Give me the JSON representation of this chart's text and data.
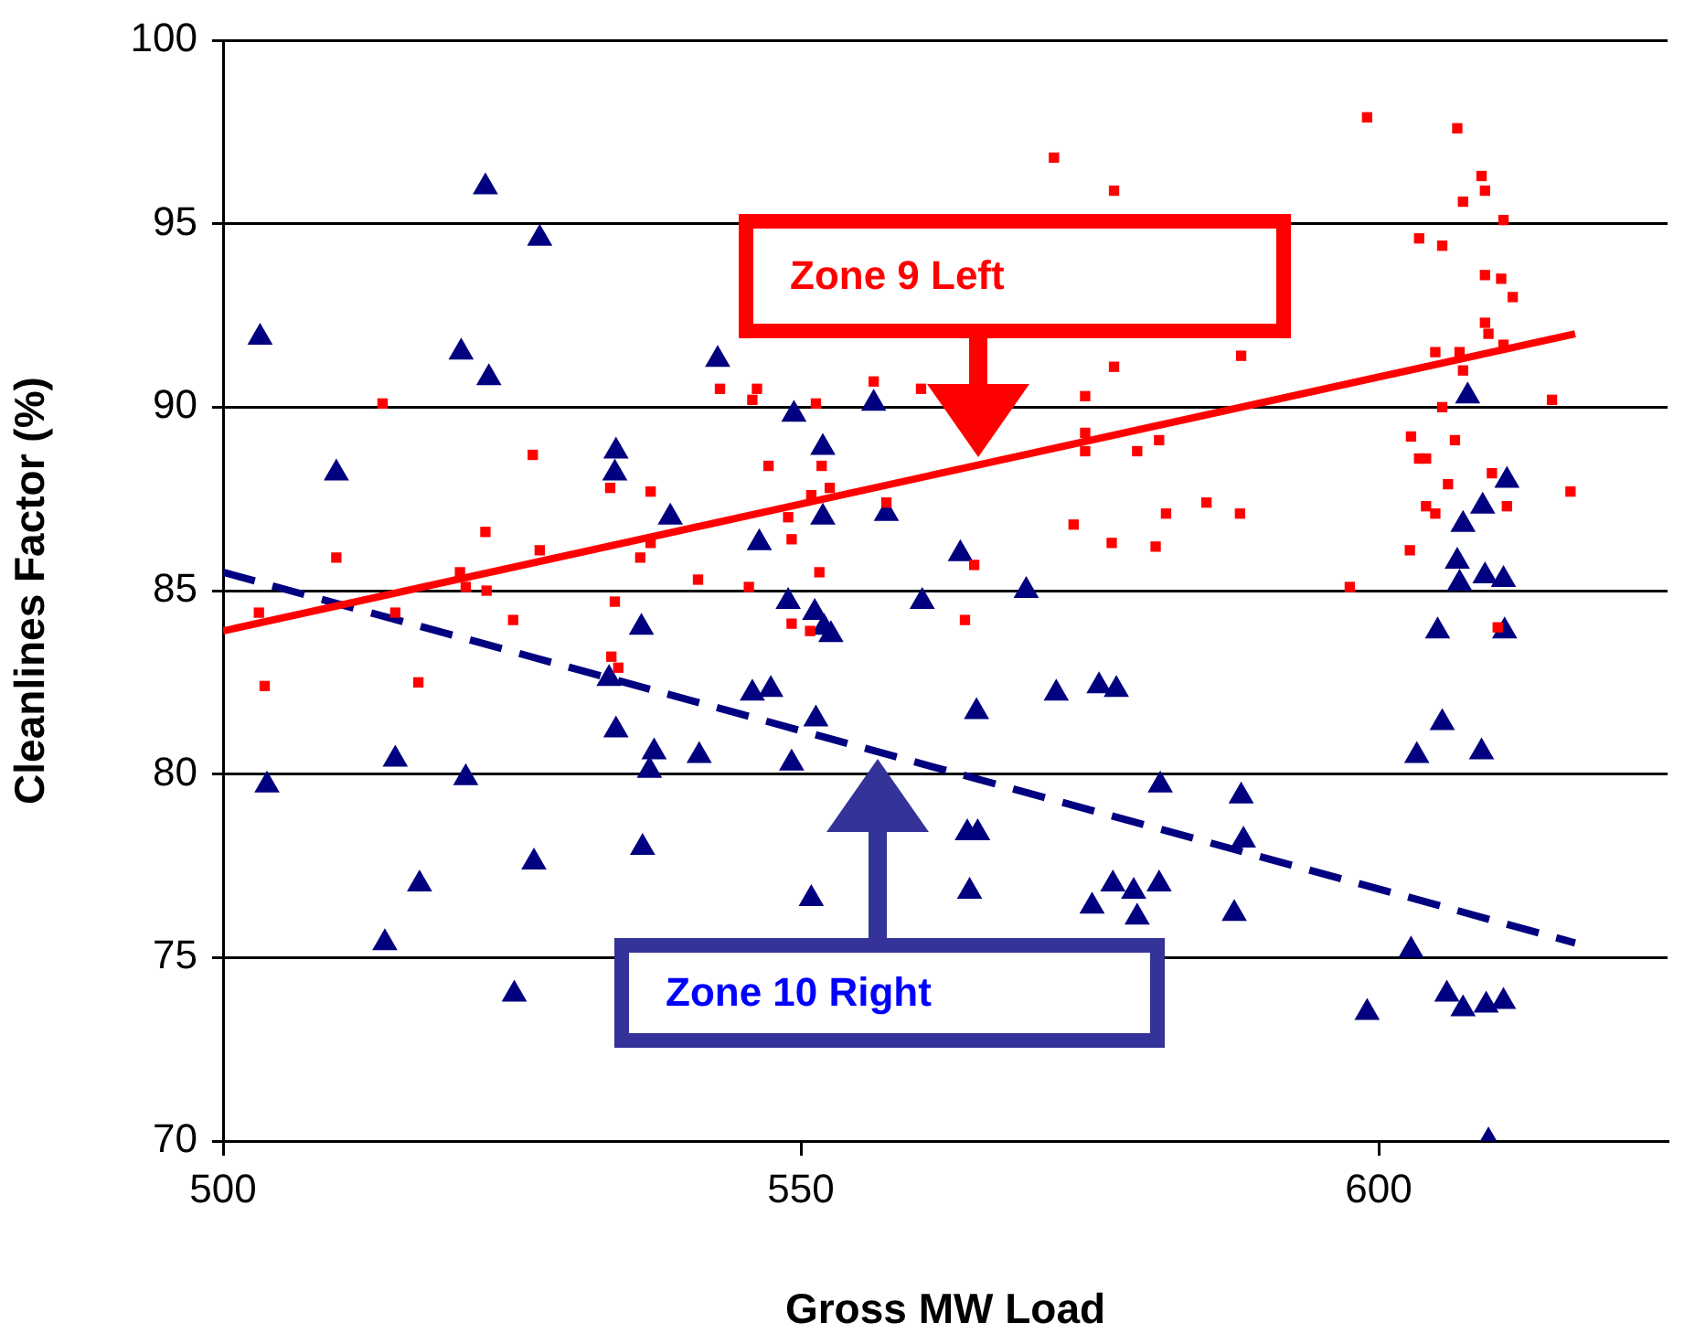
{
  "chart_data": {
    "type": "scatter",
    "xlabel": "Gross MW Load",
    "ylabel": "Cleanlines Factor (%)",
    "xlim": [
      500,
      625
    ],
    "xticks": [
      500,
      550,
      600
    ],
    "ylim": [
      70,
      100
    ],
    "yticks": [
      70,
      75,
      80,
      85,
      90,
      95,
      100
    ],
    "grid": "y",
    "series": [
      {
        "type": "scatter",
        "marker": "square",
        "color": "#ff0000",
        "x": [
          599,
          606.8,
          608.9,
          609.2,
          607.3,
          610.8,
          603.5,
          605.5,
          609.2,
          610.6,
          611.6,
          609.2,
          609.5,
          610.8,
          604.9,
          607,
          607.3,
          615,
          605.5,
          602.8,
          603.5,
          606.6,
          604.1,
          606,
          609.8,
          611.1,
          616.6,
          604.1,
          604.9,
          602.7,
          597.5,
          585.1,
          588,
          588.1,
          610.3,
          571.9,
          577.1,
          577.1,
          574.6,
          543,
          546.2,
          545.8,
          551.3,
          556.3,
          560.4,
          547.2,
          551.8,
          550.9,
          552.5,
          548.9,
          549.2,
          557.4,
          574.6,
          574.6,
          579.1,
          581,
          573.6,
          576.9,
          580.7,
          581.6,
          565,
          551.6,
          545.5,
          549.2,
          564.2,
          550.8,
          513.8,
          526.8,
          533.5,
          537,
          522.7,
          527.4,
          509.8,
          536.1,
          537,
          520.5,
          521,
          522.8,
          541.1,
          503.1,
          514.9,
          525.1,
          533.9,
          533.6,
          534.2,
          503.6,
          516.9
        ],
        "values": [
          97.9,
          97.6,
          96.3,
          95.9,
          95.6,
          95.1,
          94.6,
          94.4,
          93.6,
          93.5,
          93,
          92.3,
          92,
          91.7,
          91.5,
          91.5,
          91,
          90.2,
          90,
          89.2,
          88.6,
          89.1,
          88.6,
          87.9,
          88.2,
          87.3,
          87.7,
          87.3,
          87.1,
          86.1,
          85.1,
          87.4,
          87.1,
          91.4,
          84,
          96.8,
          95.9,
          91.1,
          90.3,
          90.5,
          90.5,
          90.2,
          90.1,
          90.7,
          90.5,
          88.4,
          88.4,
          87.6,
          87.8,
          87,
          86.4,
          87.4,
          89.3,
          88.8,
          88.8,
          89.1,
          86.8,
          86.3,
          86.2,
          87.1,
          85.7,
          85.5,
          85.1,
          84.1,
          84.2,
          83.9,
          90.1,
          88.7,
          87.8,
          87.7,
          86.6,
          86.1,
          85.9,
          85.9,
          86.3,
          85.5,
          85.1,
          85,
          85.3,
          84.4,
          84.4,
          84.2,
          84.7,
          83.2,
          82.9,
          82.4,
          82.5
        ]
      },
      {
        "type": "scatter",
        "marker": "triangle",
        "color": "#000080",
        "x": [
          522.7,
          527.4,
          503.2,
          520.6,
          523,
          542.8,
          509.8,
          534,
          533.9,
          538.7,
          536.2,
          533.4,
          534,
          537.3,
          536.9,
          541.2,
          514.9,
          521,
          503.8,
          536.3,
          526.9,
          517,
          514,
          525.2,
          549.4,
          551.9,
          556.3,
          551.9,
          557.4,
          546.4,
          563.8,
          548.9,
          551.2,
          552,
          552.6,
          560.5,
          569.5,
          545.8,
          547.4,
          551.3,
          565.2,
          572.1,
          575.8,
          577.3,
          549.2,
          581.1,
          564.4,
          565.3,
          564.6,
          550.9,
          575.2,
          577,
          578.8,
          581,
          579.1,
          607.7,
          611.1,
          609,
          607.3,
          606.8,
          609.2,
          610.8,
          607,
          605.1,
          610.9,
          605.5,
          603.3,
          608.9,
          588.1,
          588.3,
          587.5,
          602.8,
          599,
          605.9,
          607.3,
          609.3,
          610.8,
          609.5
        ],
        "values": [
          96,
          94.6,
          91.9,
          91.5,
          90.8,
          91.3,
          88.2,
          88.8,
          88.2,
          87,
          84,
          82.6,
          81.2,
          80.6,
          80.1,
          80.5,
          80.4,
          79.9,
          79.7,
          78,
          77.6,
          77,
          75.4,
          74,
          89.8,
          88.9,
          90.1,
          87,
          87.1,
          86.3,
          86,
          84.7,
          84.4,
          84,
          83.8,
          84.7,
          85,
          82.2,
          82.3,
          81.5,
          81.7,
          82.2,
          82.4,
          82.3,
          80.3,
          79.7,
          78.4,
          78.4,
          76.8,
          76.6,
          76.4,
          77,
          76.8,
          77,
          76.1,
          90.3,
          88,
          87.3,
          86.8,
          85.8,
          85.4,
          85.3,
          85.2,
          83.9,
          83.9,
          81.4,
          80.5,
          80.6,
          79.4,
          78.2,
          76.2,
          75.2,
          73.5,
          74,
          73.6,
          73.7,
          73.8,
          70
        ]
      },
      {
        "type": "line",
        "marker": "none",
        "line_style": "solid",
        "color": "#ff0000",
        "x": [
          500,
          617
        ],
        "values": [
          83.9,
          92
        ]
      },
      {
        "type": "line",
        "marker": "none",
        "line_style": "dashed",
        "color": "#000080",
        "x": [
          500,
          617
        ],
        "values": [
          85.5,
          75.4
        ]
      }
    ],
    "annotations": [
      "Zone 9 Left",
      "Zone 10 Right"
    ]
  }
}
